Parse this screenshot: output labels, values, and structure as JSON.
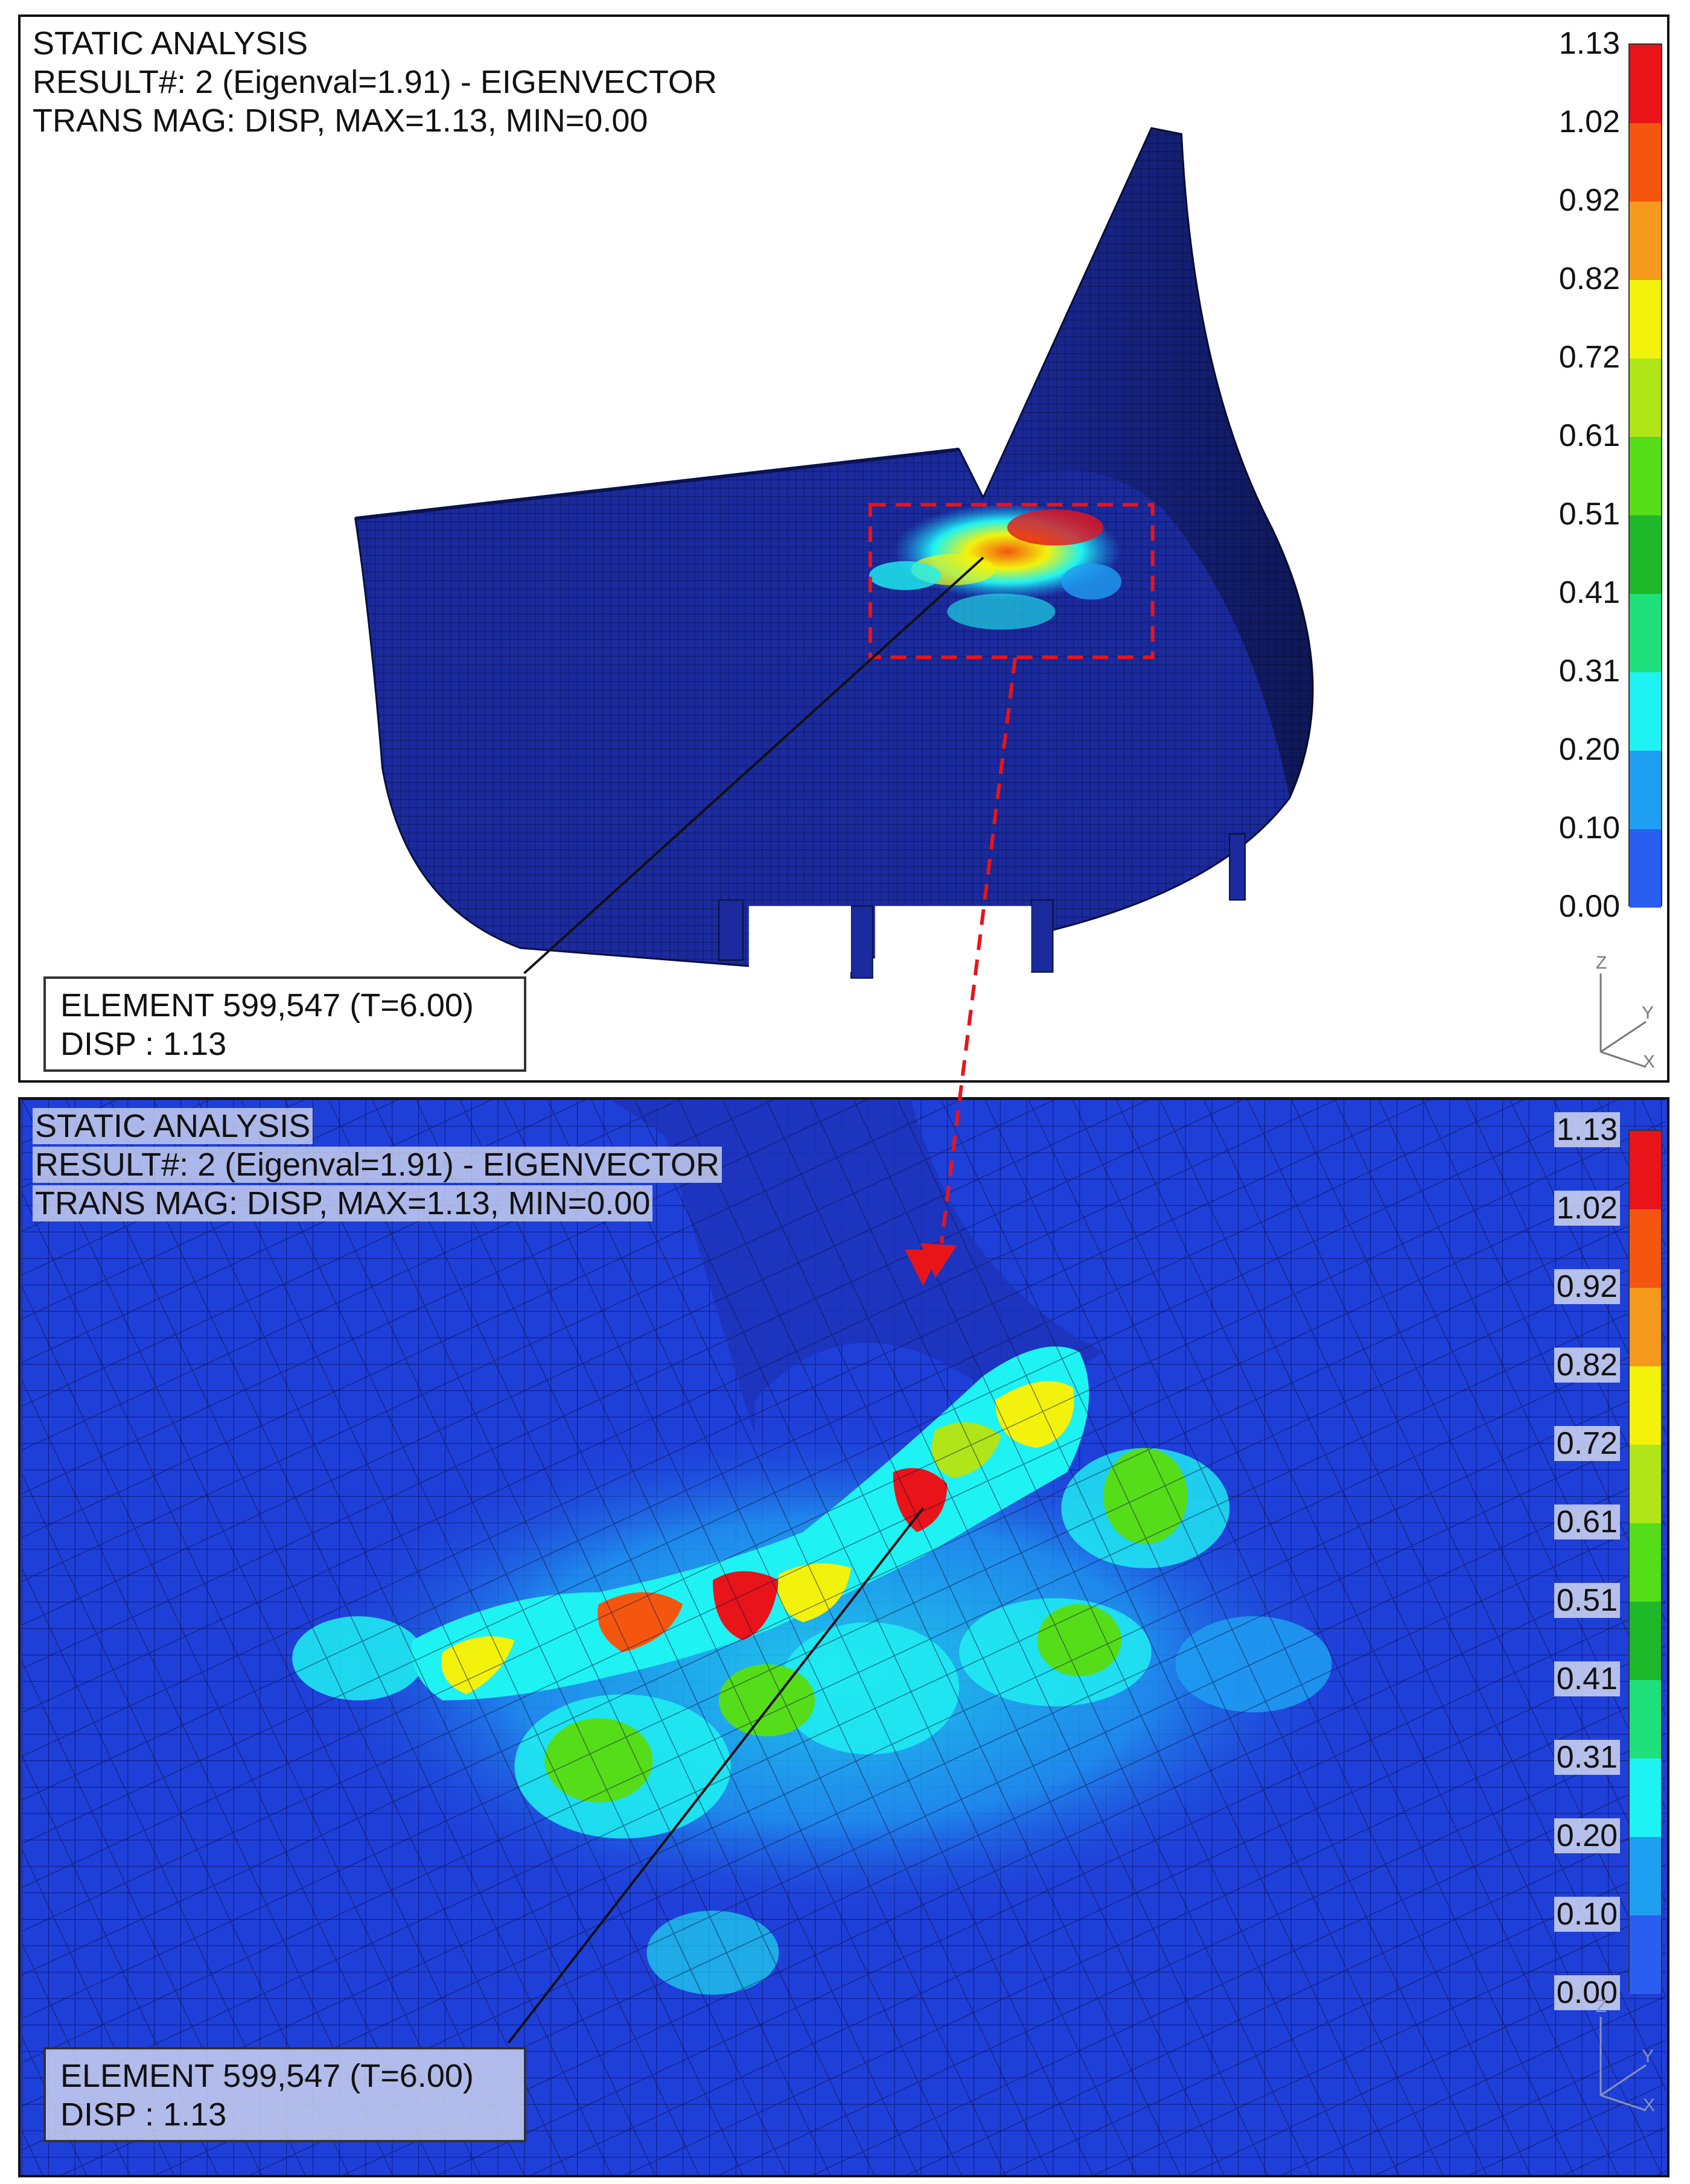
{
  "top_panel": {
    "header": {
      "line1": "STATIC ANALYSIS",
      "line2": "RESULT#: 2 (Eigenval=1.91) - EIGENVECTOR",
      "line3": "TRANS MAG: DISP, MAX=1.13, MIN=0.00"
    },
    "callout": {
      "line1": "ELEMENT 599,547 (T=6.00)",
      "line2": "DISP : 1.13"
    }
  },
  "bottom_panel": {
    "header": {
      "line1": "STATIC ANALYSIS",
      "line2": "RESULT#: 2 (Eigenval=1.91) - EIGENVECTOR",
      "line3": "TRANS MAG: DISP, MAX=1.13, MIN=0.00"
    },
    "callout": {
      "line1": "ELEMENT 599,547 (T=6.00)",
      "line2": "DISP : 1.13"
    }
  },
  "legend": {
    "ticks": [
      "1.13",
      "1.02",
      "0.92",
      "0.82",
      "0.72",
      "0.61",
      "0.51",
      "0.41",
      "0.31",
      "0.20",
      "0.10",
      "0.00"
    ],
    "colors": [
      "#e8141a",
      "#f5560f",
      "#f59a1c",
      "#f2f20d",
      "#b0e51a",
      "#55dd1a",
      "#1fb82a",
      "#1fe07a",
      "#1ff2f2",
      "#1f9ff2",
      "#2a5ef0",
      "#1020c8"
    ]
  },
  "axis_triad": {
    "z": "Z",
    "y": "Y",
    "x": "X"
  },
  "colors": {
    "mesh_dark": "#1b2a9c",
    "zoom_base": "#1f3fd9",
    "highlight_box": "#e8141a"
  }
}
